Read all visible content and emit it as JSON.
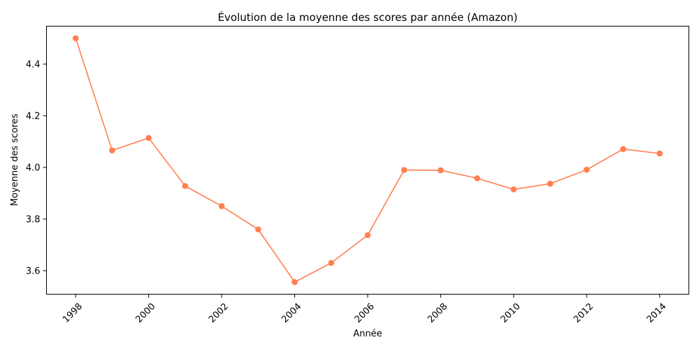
{
  "chart_data": {
    "type": "line",
    "title": "Évolution de la moyenne des scores par année (Amazon)",
    "xlabel": "Année",
    "ylabel": "Moyenne des scores",
    "x": [
      1998,
      1999,
      2000,
      2001,
      2002,
      2003,
      2004,
      2005,
      2006,
      2007,
      2008,
      2009,
      2010,
      2011,
      2012,
      2013,
      2014
    ],
    "series": [
      {
        "values": [
          4.5,
          4.066,
          4.114,
          3.928,
          3.85,
          3.76,
          3.556,
          3.63,
          3.738,
          3.99,
          3.989,
          3.958,
          3.915,
          3.937,
          3.991,
          4.071,
          4.054
        ],
        "color": "#ff7f50",
        "marker": "circle"
      }
    ],
    "xlim": [
      1997.2,
      2014.8
    ],
    "ylim": [
      3.509,
      4.547
    ],
    "xticks": [
      "1998",
      "2000",
      "2002",
      "2004",
      "2006",
      "2008",
      "2010",
      "2012",
      "2014"
    ],
    "yticks": [
      "3.6",
      "3.8",
      "4.0",
      "4.2",
      "4.4"
    ],
    "grid": false,
    "legend": "none"
  }
}
